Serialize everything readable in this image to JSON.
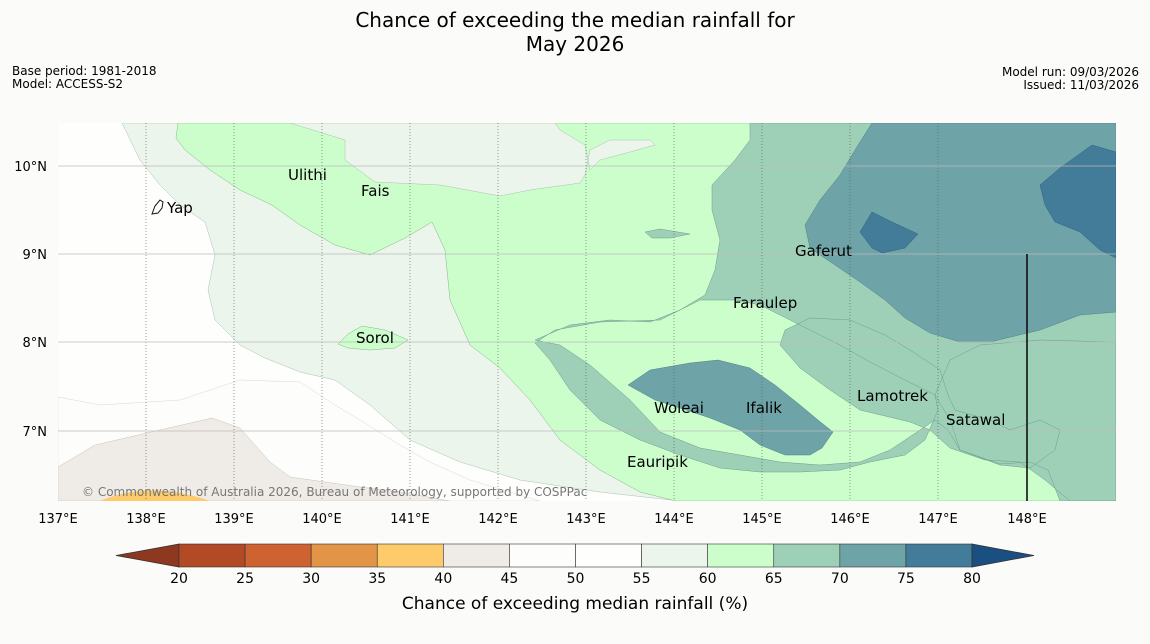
{
  "header": {
    "title_line1": "Chance of exceeding the median rainfall for",
    "title_line2": "May 2026",
    "base_period": "Base period: 1981-2018",
    "model": "Model: ACCESS-S2",
    "model_run": "Model run: 09/03/2026",
    "issued": "Issued: 11/03/2026"
  },
  "map": {
    "lon_ticks": [
      "137°E",
      "138°E",
      "139°E",
      "140°E",
      "141°E",
      "142°E",
      "143°E",
      "144°E",
      "145°E",
      "146°E",
      "147°E",
      "148°E"
    ],
    "lat_ticks": [
      "10°N",
      "9°N",
      "8°N",
      "7°N"
    ],
    "places": [
      "Yap",
      "Ulithi",
      "Fais",
      "Gaferut",
      "Faraulep",
      "Sorol",
      "Woleai",
      "Ifalik",
      "Lamotrek",
      "Satawal",
      "Eauripik"
    ],
    "copyright": "© Commonwealth of Australia 2026, Bureau of Meteorology, supported by COSPPac"
  },
  "colorbar": {
    "ticks": [
      "20",
      "25",
      "30",
      "35",
      "40",
      "45",
      "50",
      "55",
      "60",
      "65",
      "70",
      "75",
      "80"
    ],
    "label": "Chance of exceeding median rainfall (%)",
    "colors": {
      "below20": "#8e3820",
      "c20_25": "#b34a26",
      "c25_30": "#ce6230",
      "c30_35": "#e29447",
      "c35_40": "#fdcb6a",
      "c40_45": "#efebe6",
      "c45_50": "#fdfdfb",
      "c50_55": "#fefefd",
      "c55_60": "#ebf5ec",
      "c60_65": "#ccfecc",
      "c65_70": "#9ed0b8",
      "c70_75": "#6ea4a7",
      "c75_80": "#427c98",
      "above80": "#1a4f82"
    }
  }
}
